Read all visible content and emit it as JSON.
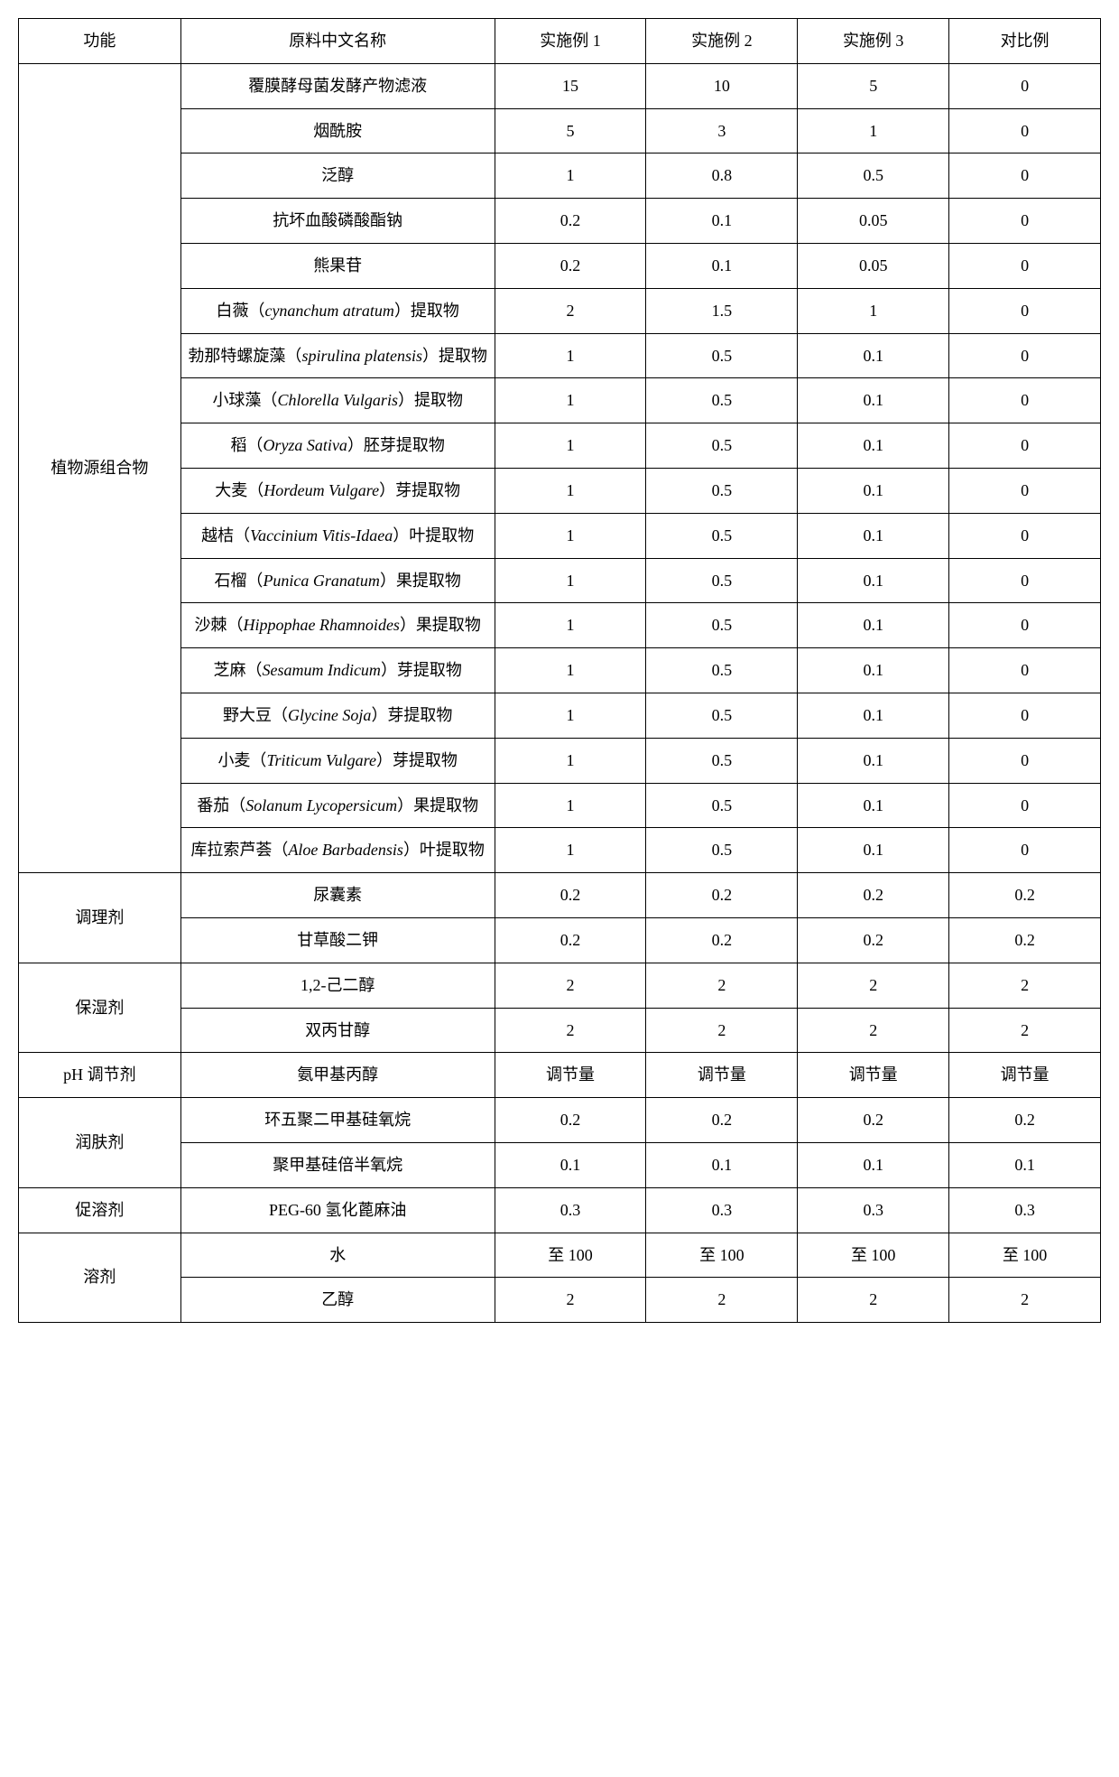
{
  "header": {
    "c0": "功能",
    "c1": "原料中文名称",
    "c2": "实施例 1",
    "c3": "实施例 2",
    "c4": "实施例 3",
    "c5": "对比例"
  },
  "groups": [
    {
      "label": "植物源组合物",
      "rows": [
        {
          "name_plain": "覆膜酵母菌发酵产物滤液",
          "v": [
            "15",
            "10",
            "5",
            "0"
          ]
        },
        {
          "name_plain": "烟酰胺",
          "v": [
            "5",
            "3",
            "1",
            "0"
          ]
        },
        {
          "name_plain": "泛醇",
          "v": [
            "1",
            "0.8",
            "0.5",
            "0"
          ]
        },
        {
          "name_plain": "抗坏血酸磷酸酯钠",
          "v": [
            "0.2",
            "0.1",
            "0.05",
            "0"
          ]
        },
        {
          "name_plain": "熊果苷",
          "v": [
            "0.2",
            "0.1",
            "0.05",
            "0"
          ]
        },
        {
          "name_pre": "白薇（",
          "name_italic": "cynanchum atratum",
          "name_post": "）提取物",
          "v": [
            "2",
            "1.5",
            "1",
            "0"
          ]
        },
        {
          "name_pre": "勃那特螺旋藻（",
          "name_italic": "spirulina platensis",
          "name_post": "）提取物",
          "v": [
            "1",
            "0.5",
            "0.1",
            "0"
          ]
        },
        {
          "name_pre": "小球藻（",
          "name_italic": "Chlorella Vulgaris",
          "name_post": "）提取物",
          "v": [
            "1",
            "0.5",
            "0.1",
            "0"
          ]
        },
        {
          "name_pre": "稻（",
          "name_italic": "Oryza Sativa",
          "name_post": "）胚芽提取物",
          "v": [
            "1",
            "0.5",
            "0.1",
            "0"
          ]
        },
        {
          "name_pre": "大麦（",
          "name_italic": "Hordeum Vulgare",
          "name_post": "）芽提取物",
          "v": [
            "1",
            "0.5",
            "0.1",
            "0"
          ]
        },
        {
          "name_pre": "越桔（",
          "name_italic": "Vaccinium Vitis-Idaea",
          "name_post": "）叶提取物",
          "v": [
            "1",
            "0.5",
            "0.1",
            "0"
          ]
        },
        {
          "name_pre": "石榴（",
          "name_italic": "Punica Granatum",
          "name_post": "）果提取物",
          "v": [
            "1",
            "0.5",
            "0.1",
            "0"
          ]
        },
        {
          "name_pre": "沙棘（",
          "name_italic": "Hippophae Rhamnoides",
          "name_post": "）果提取物",
          "v": [
            "1",
            "0.5",
            "0.1",
            "0"
          ]
        },
        {
          "name_pre": "芝麻（",
          "name_italic": "Sesamum Indicum",
          "name_post": "）芽提取物",
          "v": [
            "1",
            "0.5",
            "0.1",
            "0"
          ]
        },
        {
          "name_pre": "野大豆（",
          "name_italic": "Glycine Soja",
          "name_post": "）芽提取物",
          "v": [
            "1",
            "0.5",
            "0.1",
            "0"
          ]
        },
        {
          "name_pre": "小麦（",
          "name_italic": "Triticum Vulgare",
          "name_post": "）芽提取物",
          "v": [
            "1",
            "0.5",
            "0.1",
            "0"
          ]
        },
        {
          "name_pre": "番茄（",
          "name_italic": "Solanum Lycopersicum",
          "name_post": "）果提取物",
          "v": [
            "1",
            "0.5",
            "0.1",
            "0"
          ]
        },
        {
          "name_pre": "库拉索芦荟（",
          "name_italic": "Aloe Barbadensis",
          "name_post": "）叶提取物",
          "v": [
            "1",
            "0.5",
            "0.1",
            "0"
          ]
        }
      ]
    },
    {
      "label": "调理剂",
      "rows": [
        {
          "name_plain": "尿囊素",
          "v": [
            "0.2",
            "0.2",
            "0.2",
            "0.2"
          ]
        },
        {
          "name_plain": "甘草酸二钾",
          "v": [
            "0.2",
            "0.2",
            "0.2",
            "0.2"
          ]
        }
      ]
    },
    {
      "label": "保湿剂",
      "rows": [
        {
          "name_plain": "1,2-己二醇",
          "v": [
            "2",
            "2",
            "2",
            "2"
          ]
        },
        {
          "name_plain": "双丙甘醇",
          "v": [
            "2",
            "2",
            "2",
            "2"
          ]
        }
      ]
    },
    {
      "label": "pH 调节剂",
      "rows": [
        {
          "name_plain": "氨甲基丙醇",
          "v": [
            "调节量",
            "调节量",
            "调节量",
            "调节量"
          ]
        }
      ]
    },
    {
      "label": "润肤剂",
      "rows": [
        {
          "name_plain": "环五聚二甲基硅氧烷",
          "v": [
            "0.2",
            "0.2",
            "0.2",
            "0.2"
          ]
        },
        {
          "name_plain": "聚甲基硅倍半氧烷",
          "v": [
            "0.1",
            "0.1",
            "0.1",
            "0.1"
          ]
        }
      ]
    },
    {
      "label": "促溶剂",
      "rows": [
        {
          "name_plain": "PEG-60  氢化蓖麻油",
          "v": [
            "0.3",
            "0.3",
            "0.3",
            "0.3"
          ]
        }
      ]
    },
    {
      "label": "溶剂",
      "rows": [
        {
          "name_plain": "水",
          "v": [
            "至  100",
            "至  100",
            "至  100",
            "至  100"
          ]
        },
        {
          "name_plain": "乙醇",
          "v": [
            "2",
            "2",
            "2",
            "2"
          ]
        }
      ]
    }
  ]
}
